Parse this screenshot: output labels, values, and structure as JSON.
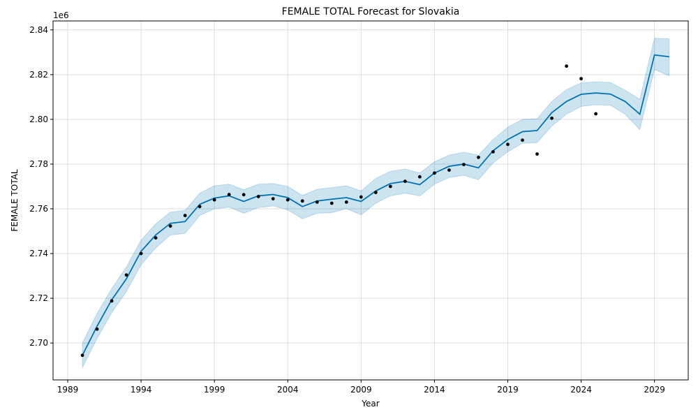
{
  "chart_data": {
    "type": "line",
    "title": "FEMALE TOTAL Forecast for Slovakia",
    "xlabel": "Year",
    "ylabel": "FEMALE TOTAL",
    "y_offset_label": "1e6",
    "y_scale_factor": 1000000,
    "xlim": [
      1988,
      2031.3
    ],
    "ylim": [
      2683500,
      2844000
    ],
    "x_ticks": [
      1989,
      1994,
      1999,
      2004,
      2009,
      2014,
      2019,
      2024,
      2029
    ],
    "x_tick_labels": [
      "1989",
      "1994",
      "1999",
      "2004",
      "2009",
      "2014",
      "2019",
      "2024",
      "2029"
    ],
    "y_ticks": [
      2700000,
      2720000,
      2740000,
      2760000,
      2780000,
      2800000,
      2820000,
      2840000
    ],
    "y_tick_labels": [
      "2.70",
      "2.72",
      "2.74",
      "2.76",
      "2.78",
      "2.80",
      "2.82",
      "2.84"
    ],
    "grid": true,
    "colors": {
      "forecast_line": "#0072b2",
      "uncertainty_band": "#0072b2",
      "observed_points": "#000000"
    },
    "observed": {
      "x": [
        1990,
        1991,
        1992,
        1993,
        1994,
        1995,
        1996,
        1997,
        1998,
        1999,
        2000,
        2001,
        2002,
        2003,
        2004,
        2005,
        2006,
        2007,
        2008,
        2009,
        2010,
        2011,
        2012,
        2013,
        2014,
        2015,
        2016,
        2017,
        2018,
        2019,
        2020,
        2021,
        2022,
        2023,
        2024,
        2025
      ],
      "y": [
        2694500,
        2706200,
        2718800,
        2730400,
        2740000,
        2747000,
        2752300,
        2757000,
        2761000,
        2764000,
        2766400,
        2766300,
        2765500,
        2764500,
        2764000,
        2763500,
        2763000,
        2762500,
        2763000,
        2765300,
        2767300,
        2770000,
        2772300,
        2774300,
        2776000,
        2777300,
        2779800,
        2783000,
        2785500,
        2788800,
        2790700,
        2784500,
        2800500,
        2823800,
        2818200,
        2802500
      ]
    },
    "forecast": {
      "x": [
        1990,
        1991,
        1992,
        1993,
        1994,
        1995,
        1996,
        1997,
        1998,
        1999,
        2000,
        2001,
        2002,
        2003,
        2004,
        2005,
        2006,
        2007,
        2008,
        2009,
        2010,
        2011,
        2012,
        2013,
        2014,
        2015,
        2016,
        2017,
        2018,
        2019,
        2020,
        2021,
        2022,
        2023,
        2024,
        2025,
        2026,
        2027,
        2028,
        2029,
        2030
      ],
      "yhat": [
        2694500,
        2707500,
        2719300,
        2728700,
        2741000,
        2748300,
        2753500,
        2754300,
        2762000,
        2764800,
        2765800,
        2763300,
        2765800,
        2766400,
        2765000,
        2761000,
        2763500,
        2764300,
        2765000,
        2763300,
        2768000,
        2771300,
        2772300,
        2770800,
        2776000,
        2779000,
        2780000,
        2778300,
        2786000,
        2791000,
        2794500,
        2795000,
        2803000,
        2808000,
        2811200,
        2811800,
        2811300,
        2808000,
        2802300,
        2828800,
        2828000
      ],
      "yhat_lower": [
        2689000,
        2702000,
        2713500,
        2723000,
        2735000,
        2742500,
        2748300,
        2749000,
        2757000,
        2760000,
        2760800,
        2758000,
        2760500,
        2761300,
        2759500,
        2755500,
        2758000,
        2758300,
        2760000,
        2757300,
        2762500,
        2765800,
        2767000,
        2765800,
        2771000,
        2774000,
        2775000,
        2773000,
        2780500,
        2785500,
        2789300,
        2789600,
        2797000,
        2802300,
        2805800,
        2806500,
        2806300,
        2802300,
        2795400,
        2822300,
        2819500
      ],
      "yhat_upper": [
        2700000,
        2713200,
        2724300,
        2734000,
        2746000,
        2753300,
        2758500,
        2759300,
        2767000,
        2770300,
        2771000,
        2768500,
        2771000,
        2771300,
        2770000,
        2766000,
        2768700,
        2769500,
        2770300,
        2768000,
        2773600,
        2776800,
        2777800,
        2776000,
        2781000,
        2784000,
        2785300,
        2784000,
        2791000,
        2796500,
        2800000,
        2800300,
        2808000,
        2813300,
        2816300,
        2816800,
        2816500,
        2813000,
        2809000,
        2836300,
        2836000
      ]
    }
  }
}
